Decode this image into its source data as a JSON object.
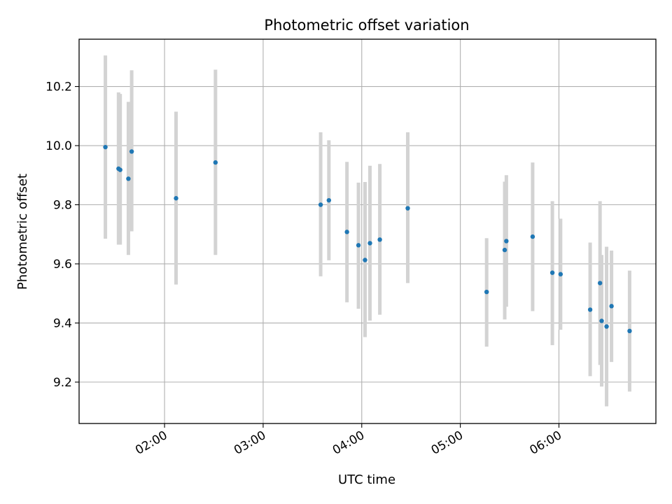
{
  "chart_data": {
    "type": "scatter",
    "title": "Photometric offset variation",
    "xlabel": "UTC time",
    "ylabel": "Photometric offset",
    "x_is_time": true,
    "xlim": [
      "01:08",
      "06:59"
    ],
    "ylim": [
      9.06,
      10.36
    ],
    "xticks": [
      "02:00",
      "03:00",
      "04:00",
      "05:00",
      "06:00"
    ],
    "yticks": [
      9.2,
      9.4,
      9.6,
      9.8,
      10.0,
      10.2
    ],
    "grid": true,
    "errorbar_color": "#d3d3d3",
    "marker_color": "#1f77b4",
    "points": [
      {
        "x": "01:24",
        "y": 9.995,
        "ylo": 9.685,
        "yhi": 10.305
      },
      {
        "x": "01:32",
        "y": 9.922,
        "ylo": 9.665,
        "yhi": 10.18
      },
      {
        "x": "01:33",
        "y": 9.918,
        "ylo": 9.665,
        "yhi": 10.175
      },
      {
        "x": "01:38",
        "y": 9.888,
        "ylo": 9.63,
        "yhi": 10.148
      },
      {
        "x": "01:40",
        "y": 9.98,
        "ylo": 9.71,
        "yhi": 10.255
      },
      {
        "x": "02:07",
        "y": 9.822,
        "ylo": 9.53,
        "yhi": 10.115
      },
      {
        "x": "02:31",
        "y": 9.943,
        "ylo": 9.63,
        "yhi": 10.257
      },
      {
        "x": "03:35",
        "y": 9.8,
        "ylo": 9.558,
        "yhi": 10.045
      },
      {
        "x": "03:40",
        "y": 9.815,
        "ylo": 9.612,
        "yhi": 10.018
      },
      {
        "x": "03:51",
        "y": 9.708,
        "ylo": 9.47,
        "yhi": 9.945
      },
      {
        "x": "03:58",
        "y": 9.663,
        "ylo": 9.448,
        "yhi": 9.875
      },
      {
        "x": "04:02",
        "y": 9.613,
        "ylo": 9.352,
        "yhi": 9.877
      },
      {
        "x": "04:05",
        "y": 9.67,
        "ylo": 9.408,
        "yhi": 9.932
      },
      {
        "x": "04:11",
        "y": 9.682,
        "ylo": 9.428,
        "yhi": 9.938
      },
      {
        "x": "04:28",
        "y": 9.788,
        "ylo": 9.535,
        "yhi": 10.045
      },
      {
        "x": "05:16",
        "y": 9.505,
        "ylo": 9.32,
        "yhi": 9.687
      },
      {
        "x": "05:27",
        "y": 9.647,
        "ylo": 9.412,
        "yhi": 9.878
      },
      {
        "x": "05:28",
        "y": 9.677,
        "ylo": 9.455,
        "yhi": 9.9
      },
      {
        "x": "05:44",
        "y": 9.692,
        "ylo": 9.44,
        "yhi": 9.943
      },
      {
        "x": "05:56",
        "y": 9.57,
        "ylo": 9.325,
        "yhi": 9.812
      },
      {
        "x": "06:01",
        "y": 9.565,
        "ylo": 9.377,
        "yhi": 9.753
      },
      {
        "x": "06:19",
        "y": 9.445,
        "ylo": 9.22,
        "yhi": 9.672
      },
      {
        "x": "06:25",
        "y": 9.535,
        "ylo": 9.258,
        "yhi": 9.812
      },
      {
        "x": "06:26",
        "y": 9.407,
        "ylo": 9.185,
        "yhi": 9.63
      },
      {
        "x": "06:29",
        "y": 9.388,
        "ylo": 9.118,
        "yhi": 9.658
      },
      {
        "x": "06:32",
        "y": 9.457,
        "ylo": 9.268,
        "yhi": 9.645
      },
      {
        "x": "06:43",
        "y": 9.373,
        "ylo": 9.168,
        "yhi": 9.577
      }
    ]
  }
}
